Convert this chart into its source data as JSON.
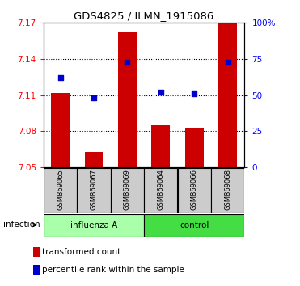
{
  "title": "GDS4825 / ILMN_1915086",
  "samples": [
    "GSM869065",
    "GSM869067",
    "GSM869069",
    "GSM869064",
    "GSM869066",
    "GSM869068"
  ],
  "bar_values": [
    7.112,
    7.063,
    7.163,
    7.085,
    7.083,
    7.17
  ],
  "percentile_values": [
    62,
    48,
    73,
    52,
    51,
    73
  ],
  "ylim_left": [
    7.05,
    7.17
  ],
  "ylim_right": [
    0,
    100
  ],
  "yticks_left": [
    7.05,
    7.08,
    7.11,
    7.14,
    7.17
  ],
  "yticks_right": [
    0,
    25,
    50,
    75,
    100
  ],
  "ytick_right_labels": [
    "0",
    "25",
    "50",
    "75",
    "100%"
  ],
  "grid_lines": [
    7.08,
    7.11,
    7.14
  ],
  "bar_color": "#cc0000",
  "dot_color": "#0000cc",
  "bar_width": 0.55,
  "sample_box_color": "#cccccc",
  "influenza_color": "#aaffaa",
  "control_color": "#44dd44",
  "legend_items": [
    "transformed count",
    "percentile rank within the sample"
  ],
  "legend_colors": [
    "#cc0000",
    "#0000cc"
  ],
  "infection_label": "infection"
}
